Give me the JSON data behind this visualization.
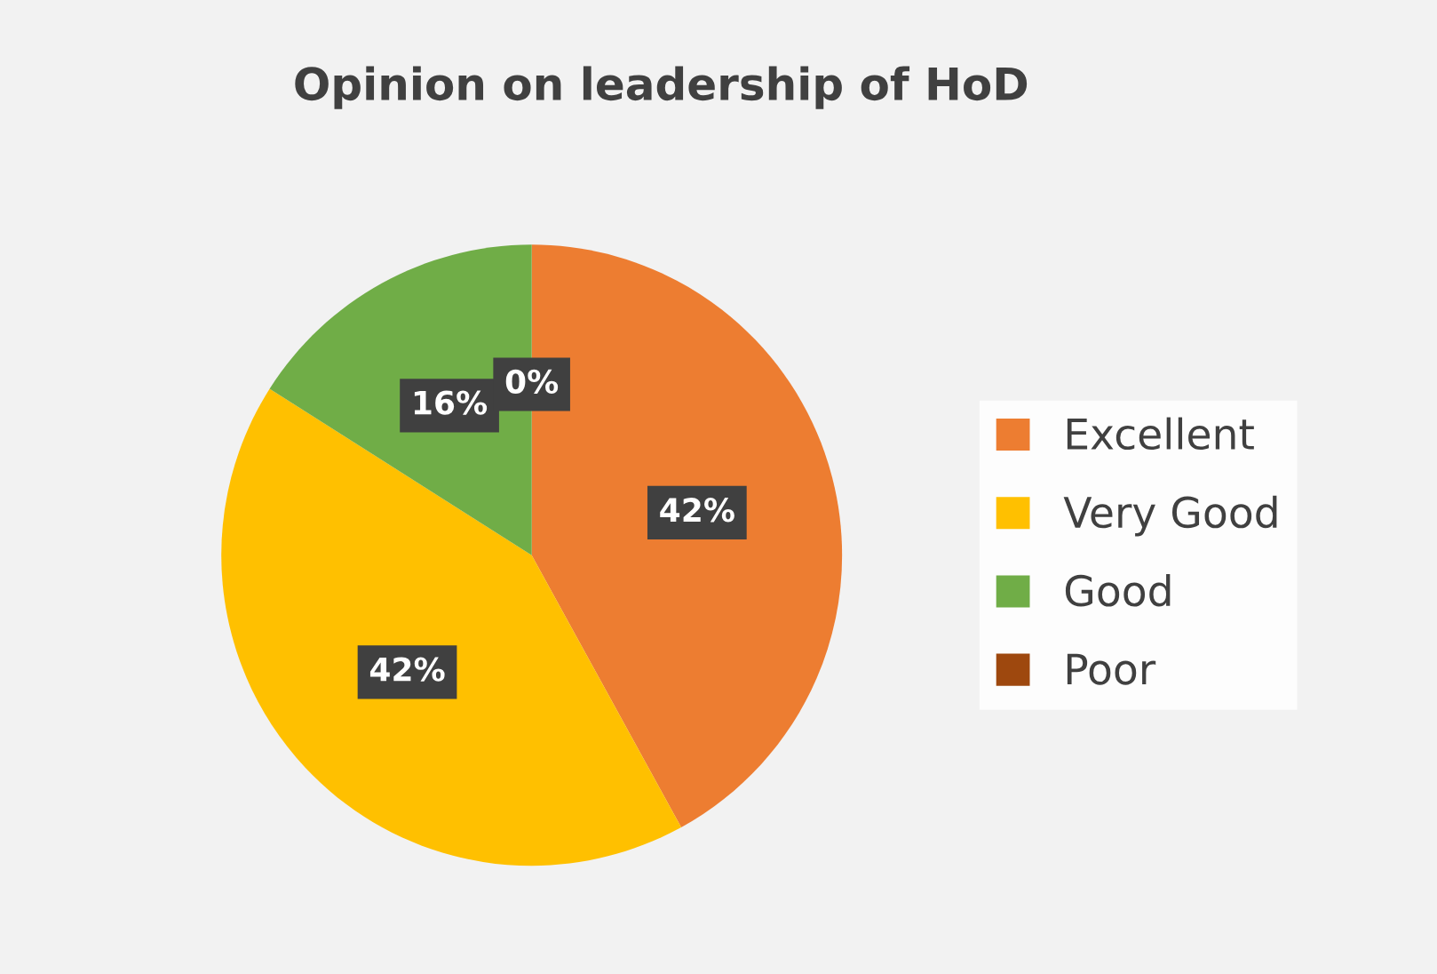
{
  "chart_data": {
    "type": "pie",
    "title": "Opinion on leadership of HoD",
    "categories": [
      "Excellent",
      "Very Good",
      "Good",
      "Poor"
    ],
    "values": [
      42,
      42,
      16,
      0
    ],
    "colors": [
      "#ed7d31",
      "#ffc000",
      "#70ad47",
      "#9e480e"
    ],
    "value_labels": [
      "42%",
      "42%",
      "16%",
      "0%"
    ],
    "legend": "right"
  }
}
